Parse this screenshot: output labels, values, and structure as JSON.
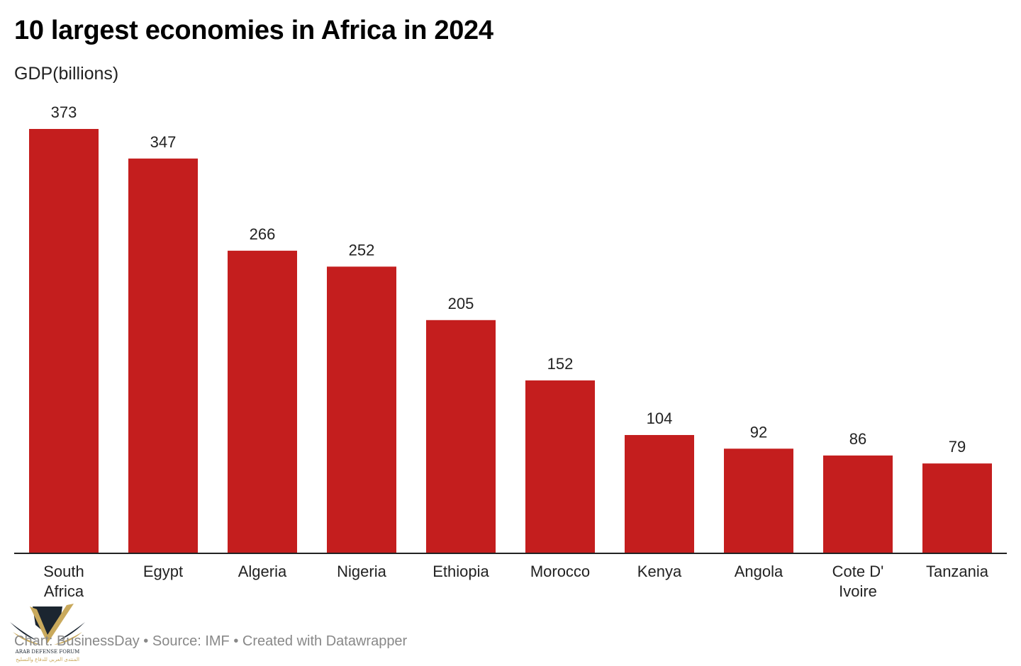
{
  "title": "10 largest economies in Africa in 2024",
  "subtitle": "GDP(billions)",
  "footer": "Chart: BusinessDay • Source: IMF • Created with Datawrapper",
  "watermark": {
    "name": "ARAB DEFENSE FORUM",
    "subtext": "المنتدى العربي للدفاع والتسليح",
    "icon": "shield-wings-logo"
  },
  "colors": {
    "bar": "#c41e1e",
    "axis": "#222222",
    "label": "#222222"
  },
  "chart_data": {
    "type": "bar",
    "title": "10 largest economies in Africa in 2024",
    "subtitle": "GDP(billions)",
    "xlabel": "",
    "ylabel": "GDP(billions)",
    "ylim": [
      0,
      373
    ],
    "grid": false,
    "categories": [
      [
        "South",
        "Africa"
      ],
      [
        "Egypt"
      ],
      [
        "Algeria"
      ],
      [
        "Nigeria"
      ],
      [
        "Ethiopia"
      ],
      [
        "Morocco"
      ],
      [
        "Kenya"
      ],
      [
        "Angola"
      ],
      [
        "Cote D'",
        "Ivoire"
      ],
      [
        "Tanzania"
      ]
    ],
    "values": [
      373,
      347,
      266,
      252,
      205,
      152,
      104,
      92,
      86,
      79
    ],
    "data_labels": [
      "373",
      "347",
      "266",
      "252",
      "205",
      "152",
      "104",
      "92",
      "86",
      "79"
    ]
  }
}
